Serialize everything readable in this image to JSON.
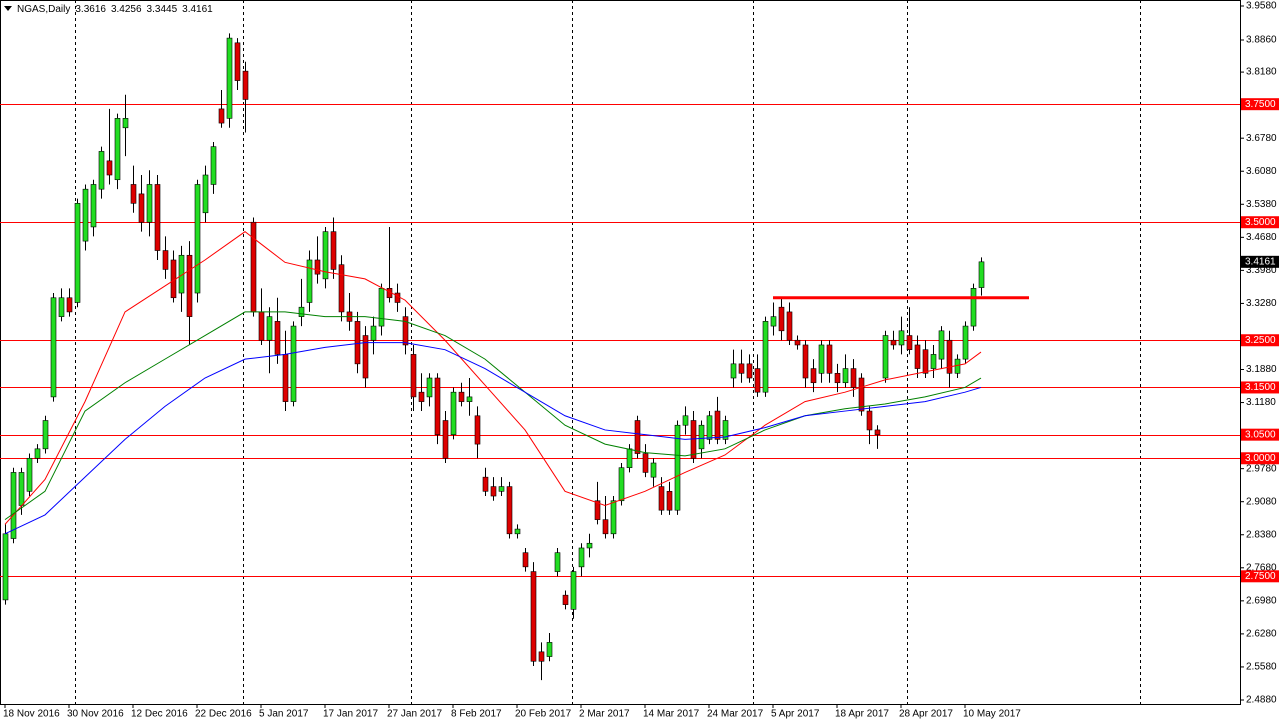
{
  "chart_data": {
    "type": "candlestick",
    "title": "NGAS,Daily",
    "up_color": "#22dd22",
    "down_color": "#dd0000",
    "candles": {
      "open": [
        2.7,
        2.83,
        2.9,
        2.93,
        3.0,
        3.02,
        3.13,
        3.3,
        3.34,
        3.33,
        3.46,
        3.49,
        3.57,
        3.63,
        3.59,
        3.7,
        3.58,
        3.56,
        3.5,
        3.58,
        3.44,
        3.42,
        3.35,
        3.43,
        3.35,
        3.52,
        3.58,
        3.74,
        3.72,
        3.88,
        3.82,
        3.5,
        3.31,
        3.25,
        3.29,
        3.22,
        3.12,
        3.3,
        3.33,
        3.42,
        3.38,
        3.48,
        3.41,
        3.31,
        3.29,
        3.26,
        3.25,
        3.28,
        3.36,
        3.35,
        3.3,
        3.22,
        3.14,
        3.13,
        3.17,
        3.08,
        3.05,
        3.14,
        3.12,
        3.09,
        2.96,
        2.94,
        2.93,
        2.94,
        2.84,
        2.8,
        2.76,
        2.59,
        2.58,
        2.76,
        2.71,
        2.68,
        2.77,
        2.81,
        2.91,
        2.87,
        2.84,
        2.91,
        2.98,
        3.08,
        3.01,
        2.96,
        2.94,
        2.93,
        2.89,
        3.07,
        3.08,
        3.02,
        3.04,
        3.1,
        3.04,
        3.17,
        3.2,
        3.2,
        3.19,
        3.14,
        3.28,
        3.32,
        3.31,
        3.25,
        3.24,
        3.19,
        3.18,
        3.24,
        3.18,
        3.16,
        3.19,
        3.17,
        3.1,
        3.06,
        3.17,
        3.25,
        3.24,
        3.26,
        3.24,
        3.23,
        3.19,
        3.21,
        3.25,
        3.18,
        3.21,
        3.28,
        3.3616
      ],
      "high": [
        2.86,
        2.98,
        2.98,
        3.01,
        3.03,
        3.09,
        3.35,
        3.36,
        3.36,
        3.55,
        3.58,
        3.59,
        3.66,
        3.74,
        3.73,
        3.77,
        3.62,
        3.6,
        3.61,
        3.6,
        3.47,
        3.44,
        3.45,
        3.46,
        3.59,
        3.62,
        3.67,
        3.78,
        3.9,
        3.89,
        3.84,
        3.51,
        3.36,
        3.32,
        3.34,
        3.27,
        3.29,
        3.38,
        3.44,
        3.47,
        3.49,
        3.51,
        3.43,
        3.35,
        3.31,
        3.28,
        3.3,
        3.37,
        3.49,
        3.37,
        3.32,
        3.24,
        3.18,
        3.18,
        3.18,
        3.1,
        3.15,
        3.16,
        3.17,
        3.11,
        2.98,
        2.96,
        2.96,
        2.95,
        2.86,
        2.81,
        2.78,
        2.61,
        2.63,
        2.81,
        2.72,
        2.77,
        2.82,
        2.84,
        2.95,
        2.92,
        2.92,
        2.99,
        3.03,
        3.09,
        3.03,
        3.0,
        2.96,
        2.95,
        3.08,
        3.11,
        3.1,
        3.08,
        3.1,
        3.13,
        3.09,
        3.23,
        3.23,
        3.22,
        3.22,
        3.3,
        3.33,
        3.34,
        3.33,
        3.26,
        3.25,
        3.21,
        3.25,
        3.25,
        3.2,
        3.22,
        3.21,
        3.18,
        3.11,
        3.07,
        3.27,
        3.27,
        3.3,
        3.32,
        3.26,
        3.25,
        3.24,
        3.28,
        3.27,
        3.22,
        3.29,
        3.37,
        3.4256
      ],
      "low": [
        2.69,
        2.82,
        2.88,
        2.92,
        2.99,
        3.01,
        3.12,
        3.29,
        3.3,
        3.32,
        3.44,
        3.47,
        3.55,
        3.58,
        3.57,
        3.64,
        3.52,
        3.48,
        3.47,
        3.42,
        3.38,
        3.33,
        3.31,
        3.24,
        3.33,
        3.5,
        3.56,
        3.7,
        3.7,
        3.78,
        3.69,
        3.3,
        3.24,
        3.18,
        3.2,
        3.1,
        3.11,
        3.28,
        3.31,
        3.37,
        3.36,
        3.38,
        3.29,
        3.27,
        3.18,
        3.15,
        3.22,
        3.26,
        3.33,
        3.31,
        3.22,
        3.1,
        3.1,
        3.11,
        3.03,
        2.99,
        3.04,
        3.11,
        3.09,
        3.0,
        2.92,
        2.91,
        2.92,
        2.83,
        2.83,
        2.76,
        2.56,
        2.53,
        2.57,
        2.75,
        2.68,
        2.66,
        2.75,
        2.79,
        2.86,
        2.83,
        2.83,
        2.9,
        2.97,
        3.0,
        2.96,
        2.94,
        2.88,
        2.88,
        2.88,
        3.05,
        2.99,
        3.0,
        3.03,
        3.03,
        3.03,
        3.15,
        3.16,
        3.16,
        3.13,
        3.13,
        3.26,
        3.25,
        3.24,
        3.23,
        3.15,
        3.14,
        3.16,
        3.16,
        3.14,
        3.15,
        3.13,
        3.09,
        3.03,
        3.02,
        3.16,
        3.23,
        3.22,
        3.22,
        3.17,
        3.17,
        3.17,
        3.19,
        3.15,
        3.17,
        3.2,
        3.27,
        3.3445
      ],
      "close": [
        2.84,
        2.97,
        2.97,
        3.0,
        3.02,
        3.08,
        3.34,
        3.34,
        3.31,
        3.54,
        3.57,
        3.58,
        3.65,
        3.6,
        3.72,
        3.72,
        3.54,
        3.5,
        3.58,
        3.44,
        3.4,
        3.34,
        3.43,
        3.3,
        3.58,
        3.6,
        3.66,
        3.71,
        3.89,
        3.8,
        3.76,
        3.31,
        3.25,
        3.3,
        3.22,
        3.12,
        3.28,
        3.32,
        3.42,
        3.39,
        3.48,
        3.4,
        3.31,
        3.29,
        3.2,
        3.17,
        3.28,
        3.36,
        3.34,
        3.33,
        3.24,
        3.13,
        3.12,
        3.17,
        3.05,
        3.0,
        3.14,
        3.12,
        3.13,
        3.03,
        2.93,
        2.92,
        2.94,
        2.84,
        2.85,
        2.77,
        2.57,
        2.57,
        2.61,
        2.8,
        2.69,
        2.76,
        2.81,
        2.82,
        2.87,
        2.84,
        2.91,
        2.98,
        3.02,
        3.01,
        2.97,
        2.99,
        2.89,
        2.89,
        3.07,
        3.09,
        3.0,
        3.07,
        3.09,
        3.04,
        3.08,
        3.2,
        3.18,
        3.17,
        3.14,
        3.29,
        3.3,
        3.27,
        3.25,
        3.24,
        3.17,
        3.16,
        3.24,
        3.18,
        3.16,
        3.19,
        3.15,
        3.1,
        3.06,
        3.05,
        3.26,
        3.24,
        3.27,
        3.23,
        3.19,
        3.18,
        3.22,
        3.27,
        3.18,
        3.21,
        3.28,
        3.36,
        3.4161
      ]
    },
    "ma_x": [
      0,
      5,
      10,
      15,
      20,
      25,
      30,
      35,
      40,
      45,
      50,
      55,
      60,
      65,
      70,
      75,
      80,
      85,
      90,
      95,
      100,
      105,
      110,
      115,
      120,
      122
    ],
    "moving_averages": [
      {
        "color": "#ff0000",
        "values": [
          2.86,
          2.955,
          3.12,
          3.31,
          3.365,
          3.42,
          3.48,
          3.415,
          3.395,
          3.38,
          3.335,
          3.25,
          3.155,
          3.06,
          2.93,
          2.9,
          2.93,
          2.97,
          3.007,
          3.07,
          3.12,
          3.14,
          3.166,
          3.183,
          3.2,
          3.225
        ]
      },
      {
        "color": "#008000",
        "values": [
          2.87,
          2.93,
          3.1,
          3.16,
          3.21,
          3.26,
          3.31,
          3.31,
          3.3,
          3.3,
          3.29,
          3.26,
          3.21,
          3.14,
          3.07,
          3.03,
          3.012,
          3.005,
          3.02,
          3.06,
          3.09,
          3.105,
          3.115,
          3.13,
          3.15,
          3.17
        ]
      },
      {
        "color": "#0000ff",
        "values": [
          2.84,
          2.88,
          2.96,
          3.04,
          3.11,
          3.17,
          3.21,
          3.22,
          3.235,
          3.245,
          3.245,
          3.23,
          3.19,
          3.14,
          3.09,
          3.06,
          3.05,
          3.04,
          3.045,
          3.065,
          3.09,
          3.1,
          3.11,
          3.12,
          3.14,
          3.15
        ]
      }
    ],
    "levels": [
      {
        "value": 3.75,
        "label": "3.7500"
      },
      {
        "value": 3.5,
        "label": "3.5000"
      },
      {
        "value": 3.25,
        "label": "3.2500"
      },
      {
        "value": 3.15,
        "label": "3.1500"
      },
      {
        "value": 3.05,
        "label": "3.0500"
      },
      {
        "value": 3.0,
        "label": "3.0000"
      },
      {
        "value": 2.75,
        "label": "2.7500"
      }
    ],
    "level_color": "#ff0000",
    "resistance": {
      "value": 3.34,
      "x": [
        96,
        128
      ]
    },
    "ylim": [
      2.4795,
      3.9707
    ],
    "yticks": [
      {
        "value": 3.958,
        "label": "3.9580"
      },
      {
        "value": 3.886,
        "label": "3.8860"
      },
      {
        "value": 3.818,
        "label": "3.8180"
      },
      {
        "value": 3.678,
        "label": "3.6780"
      },
      {
        "value": 3.608,
        "label": "3.6080"
      },
      {
        "value": 3.538,
        "label": "3.5380"
      },
      {
        "value": 3.468,
        "label": "3.4680"
      },
      {
        "value": 3.398,
        "label": "3.3980"
      },
      {
        "value": 3.328,
        "label": "3.3280"
      },
      {
        "value": 3.188,
        "label": "3.1880"
      },
      {
        "value": 3.118,
        "label": "3.1180"
      },
      {
        "value": 2.978,
        "label": "2.9780"
      },
      {
        "value": 2.908,
        "label": "2.9080"
      },
      {
        "value": 2.838,
        "label": "2.8380"
      },
      {
        "value": 2.768,
        "label": "2.7680"
      },
      {
        "value": 2.698,
        "label": "2.6980"
      },
      {
        "value": 2.628,
        "label": "2.6280"
      },
      {
        "value": 2.558,
        "label": "2.5580"
      },
      {
        "value": 2.488,
        "label": "2.4880"
      }
    ],
    "xticks": [
      {
        "value": 0,
        "label": "18 Nov 2016"
      },
      {
        "value": 8,
        "label": "30 Nov 2016"
      },
      {
        "value": 16,
        "label": "12 Dec 2016"
      },
      {
        "value": 24,
        "label": "22 Dec 2016"
      },
      {
        "value": 32,
        "label": "5 Jan 2017"
      },
      {
        "value": 40,
        "label": "17 Jan 2017"
      },
      {
        "value": 48,
        "label": "27 Jan 2017"
      },
      {
        "value": 56,
        "label": "8 Feb 2017"
      },
      {
        "value": 64,
        "label": "20 Feb 2017"
      },
      {
        "value": 72,
        "label": "2 Mar 2017"
      },
      {
        "value": 80,
        "label": "14 Mar 2017"
      },
      {
        "value": 88,
        "label": "24 Mar 2017"
      },
      {
        "value": 96,
        "label": "5 Apr 2017"
      },
      {
        "value": 104,
        "label": "18 Apr 2017"
      },
      {
        "value": 112,
        "label": "28 Apr 2017"
      },
      {
        "value": 120,
        "label": "10 May 2017"
      }
    ]
  }
}
